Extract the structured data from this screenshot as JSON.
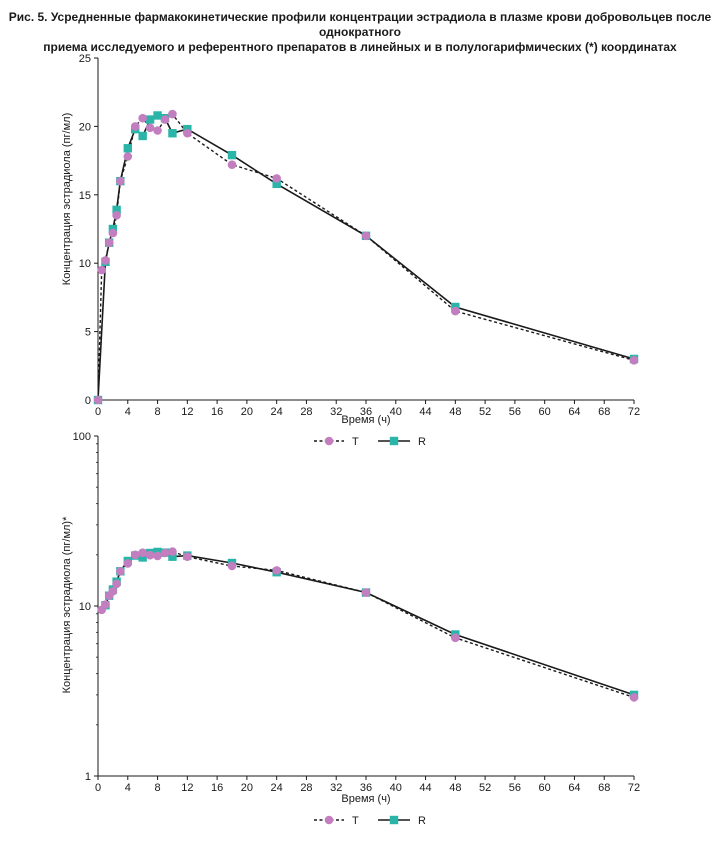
{
  "caption": {
    "line1": "Рис. 5. Усредненные фармакокинетические профили концентрации эстрадиола в плазме крови добровольцев после однократного",
    "line2": "приема исследуемого и референтного препаратов в линейных и в полулогарифмических (*) координатах"
  },
  "colors": {
    "T": "#c37ec0",
    "R": "#2bb5a8",
    "line": "#1a1a1a"
  },
  "chart_data": [
    {
      "type": "line",
      "scale": "linear",
      "xlabel": "Время (ч)",
      "ylabel": "Концентрация эстрадиола (пг/мл)",
      "xlim": [
        0,
        72
      ],
      "ylim": [
        0,
        25
      ],
      "xticks": [
        0,
        4,
        8,
        12,
        16,
        20,
        24,
        28,
        32,
        36,
        40,
        44,
        48,
        52,
        56,
        60,
        64,
        68,
        72
      ],
      "yticks": [
        0,
        5,
        10,
        15,
        20,
        25
      ],
      "legend": "below",
      "series": [
        {
          "name": "T",
          "style": "dashed",
          "marker": "circle",
          "x": [
            0,
            0.5,
            1,
            1.5,
            2,
            2.5,
            3,
            4,
            5,
            6,
            7,
            8,
            9,
            10,
            12,
            18,
            24,
            36,
            48,
            72
          ],
          "y": [
            0,
            9.5,
            10.2,
            11.5,
            12.2,
            13.5,
            16.0,
            17.8,
            20.0,
            20.6,
            19.9,
            19.7,
            20.5,
            20.9,
            19.5,
            17.2,
            16.2,
            12.0,
            6.5,
            2.9
          ]
        },
        {
          "name": "R",
          "style": "solid",
          "marker": "square",
          "x": [
            0,
            1,
            1.5,
            2,
            2.5,
            3,
            4,
            5,
            6,
            7,
            8,
            9,
            10,
            12,
            18,
            24,
            36,
            48,
            72
          ],
          "y": [
            0,
            10.1,
            11.5,
            12.5,
            13.9,
            16.0,
            18.4,
            19.8,
            19.3,
            20.5,
            20.8,
            20.6,
            19.5,
            19.8,
            17.9,
            15.8,
            12.0,
            6.8,
            3.0
          ]
        }
      ]
    },
    {
      "type": "line",
      "scale": "log",
      "xlabel": "Время (ч)",
      "ylabel": "Концентрация эстрадиола (пг/мл)*",
      "xlim": [
        0,
        72
      ],
      "ylim": [
        1,
        100
      ],
      "xticks": [
        0,
        4,
        8,
        12,
        16,
        20,
        24,
        28,
        32,
        36,
        40,
        44,
        48,
        52,
        56,
        60,
        64,
        68,
        72
      ],
      "yticks": [
        1,
        10,
        100
      ],
      "legend": "below",
      "series": [
        {
          "name": "T",
          "style": "dashed",
          "marker": "circle",
          "x": [
            0.5,
            1,
            1.5,
            2,
            2.5,
            3,
            4,
            5,
            6,
            7,
            8,
            9,
            10,
            12,
            18,
            24,
            36,
            48,
            72
          ],
          "y": [
            9.5,
            10.2,
            11.5,
            12.2,
            13.5,
            16.0,
            17.8,
            20.0,
            20.6,
            19.9,
            19.7,
            20.5,
            20.9,
            19.5,
            17.2,
            16.2,
            12.0,
            6.5,
            2.9
          ]
        },
        {
          "name": "R",
          "style": "solid",
          "marker": "square",
          "x": [
            1,
            1.5,
            2,
            2.5,
            3,
            4,
            5,
            6,
            7,
            8,
            9,
            10,
            12,
            18,
            24,
            36,
            48,
            72
          ],
          "y": [
            10.1,
            11.5,
            12.5,
            13.9,
            16.0,
            18.4,
            19.8,
            19.3,
            20.5,
            20.8,
            20.6,
            19.5,
            19.8,
            17.9,
            15.8,
            12.0,
            6.8,
            3.0
          ]
        }
      ]
    }
  ]
}
